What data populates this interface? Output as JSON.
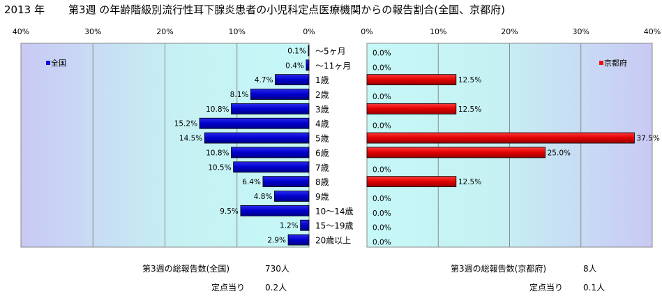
{
  "header": {
    "year": "2013 年",
    "title": "第3週 の年齢階級別流行性耳下腺炎患者の小児科定点医療機関からの報告割合(全国、京都府)"
  },
  "chart_data": [
    {
      "type": "bar",
      "orientation": "horizontal",
      "x_direction": "reversed",
      "xlim": [
        0,
        40
      ],
      "x_ticks": [
        "40%",
        "30%",
        "20%",
        "10%",
        "0%"
      ],
      "grid": true,
      "legend": "全国",
      "legend_placement": "top-left",
      "color": "#1010e0",
      "categories": [
        "～5ヶ月",
        "～11ヶ月",
        "1歳",
        "2歳",
        "3歳",
        "4歳",
        "5歳",
        "6歳",
        "7歳",
        "8歳",
        "9歳",
        "10～14歳",
        "15～19歳",
        "20歳以上"
      ],
      "values": [
        0.1,
        0.4,
        4.7,
        8.1,
        10.8,
        15.2,
        14.5,
        10.8,
        10.5,
        6.4,
        4.8,
        9.5,
        1.2,
        2.9
      ],
      "labels": [
        "0.1%",
        "0.4%",
        "4.7%",
        "8.1%",
        "10.8%",
        "15.2%",
        "14.5%",
        "10.8%",
        "10.5%",
        "6.4%",
        "4.8%",
        "9.5%",
        "1.2%",
        "2.9%"
      ]
    },
    {
      "type": "bar",
      "orientation": "horizontal",
      "xlim": [
        0,
        40
      ],
      "x_ticks": [
        "0%",
        "10%",
        "20%",
        "30%",
        "40%"
      ],
      "grid": true,
      "legend": "京都府",
      "legend_placement": "top-right",
      "color": "#ee1010",
      "categories": [
        "～5ヶ月",
        "～11ヶ月",
        "1歳",
        "2歳",
        "3歳",
        "4歳",
        "5歳",
        "6歳",
        "7歳",
        "8歳",
        "9歳",
        "10～14歳",
        "15～19歳",
        "20歳以上"
      ],
      "values": [
        0.0,
        0.0,
        12.5,
        0.0,
        12.5,
        0.0,
        37.5,
        25.0,
        0.0,
        12.5,
        0.0,
        0.0,
        0.0,
        0.0
      ],
      "labels": [
        "0.0%",
        "0.0%",
        "12.5%",
        "0.0%",
        "12.5%",
        "0.0%",
        "37.5%",
        "25.0%",
        "0.0%",
        "12.5%",
        "0.0%",
        "0.0%",
        "0.0%",
        "0.0%"
      ]
    }
  ],
  "footer": {
    "national_total_label": "第3週の総報告数(全国)",
    "national_total_value": "730人",
    "national_per_label": "定点当り",
    "national_per_value": "0.2人",
    "kyoto_total_label": "第3週の総報告数(京都府)",
    "kyoto_total_value": "8人",
    "kyoto_per_label": "定点当り",
    "kyoto_per_value": "0.1人"
  }
}
